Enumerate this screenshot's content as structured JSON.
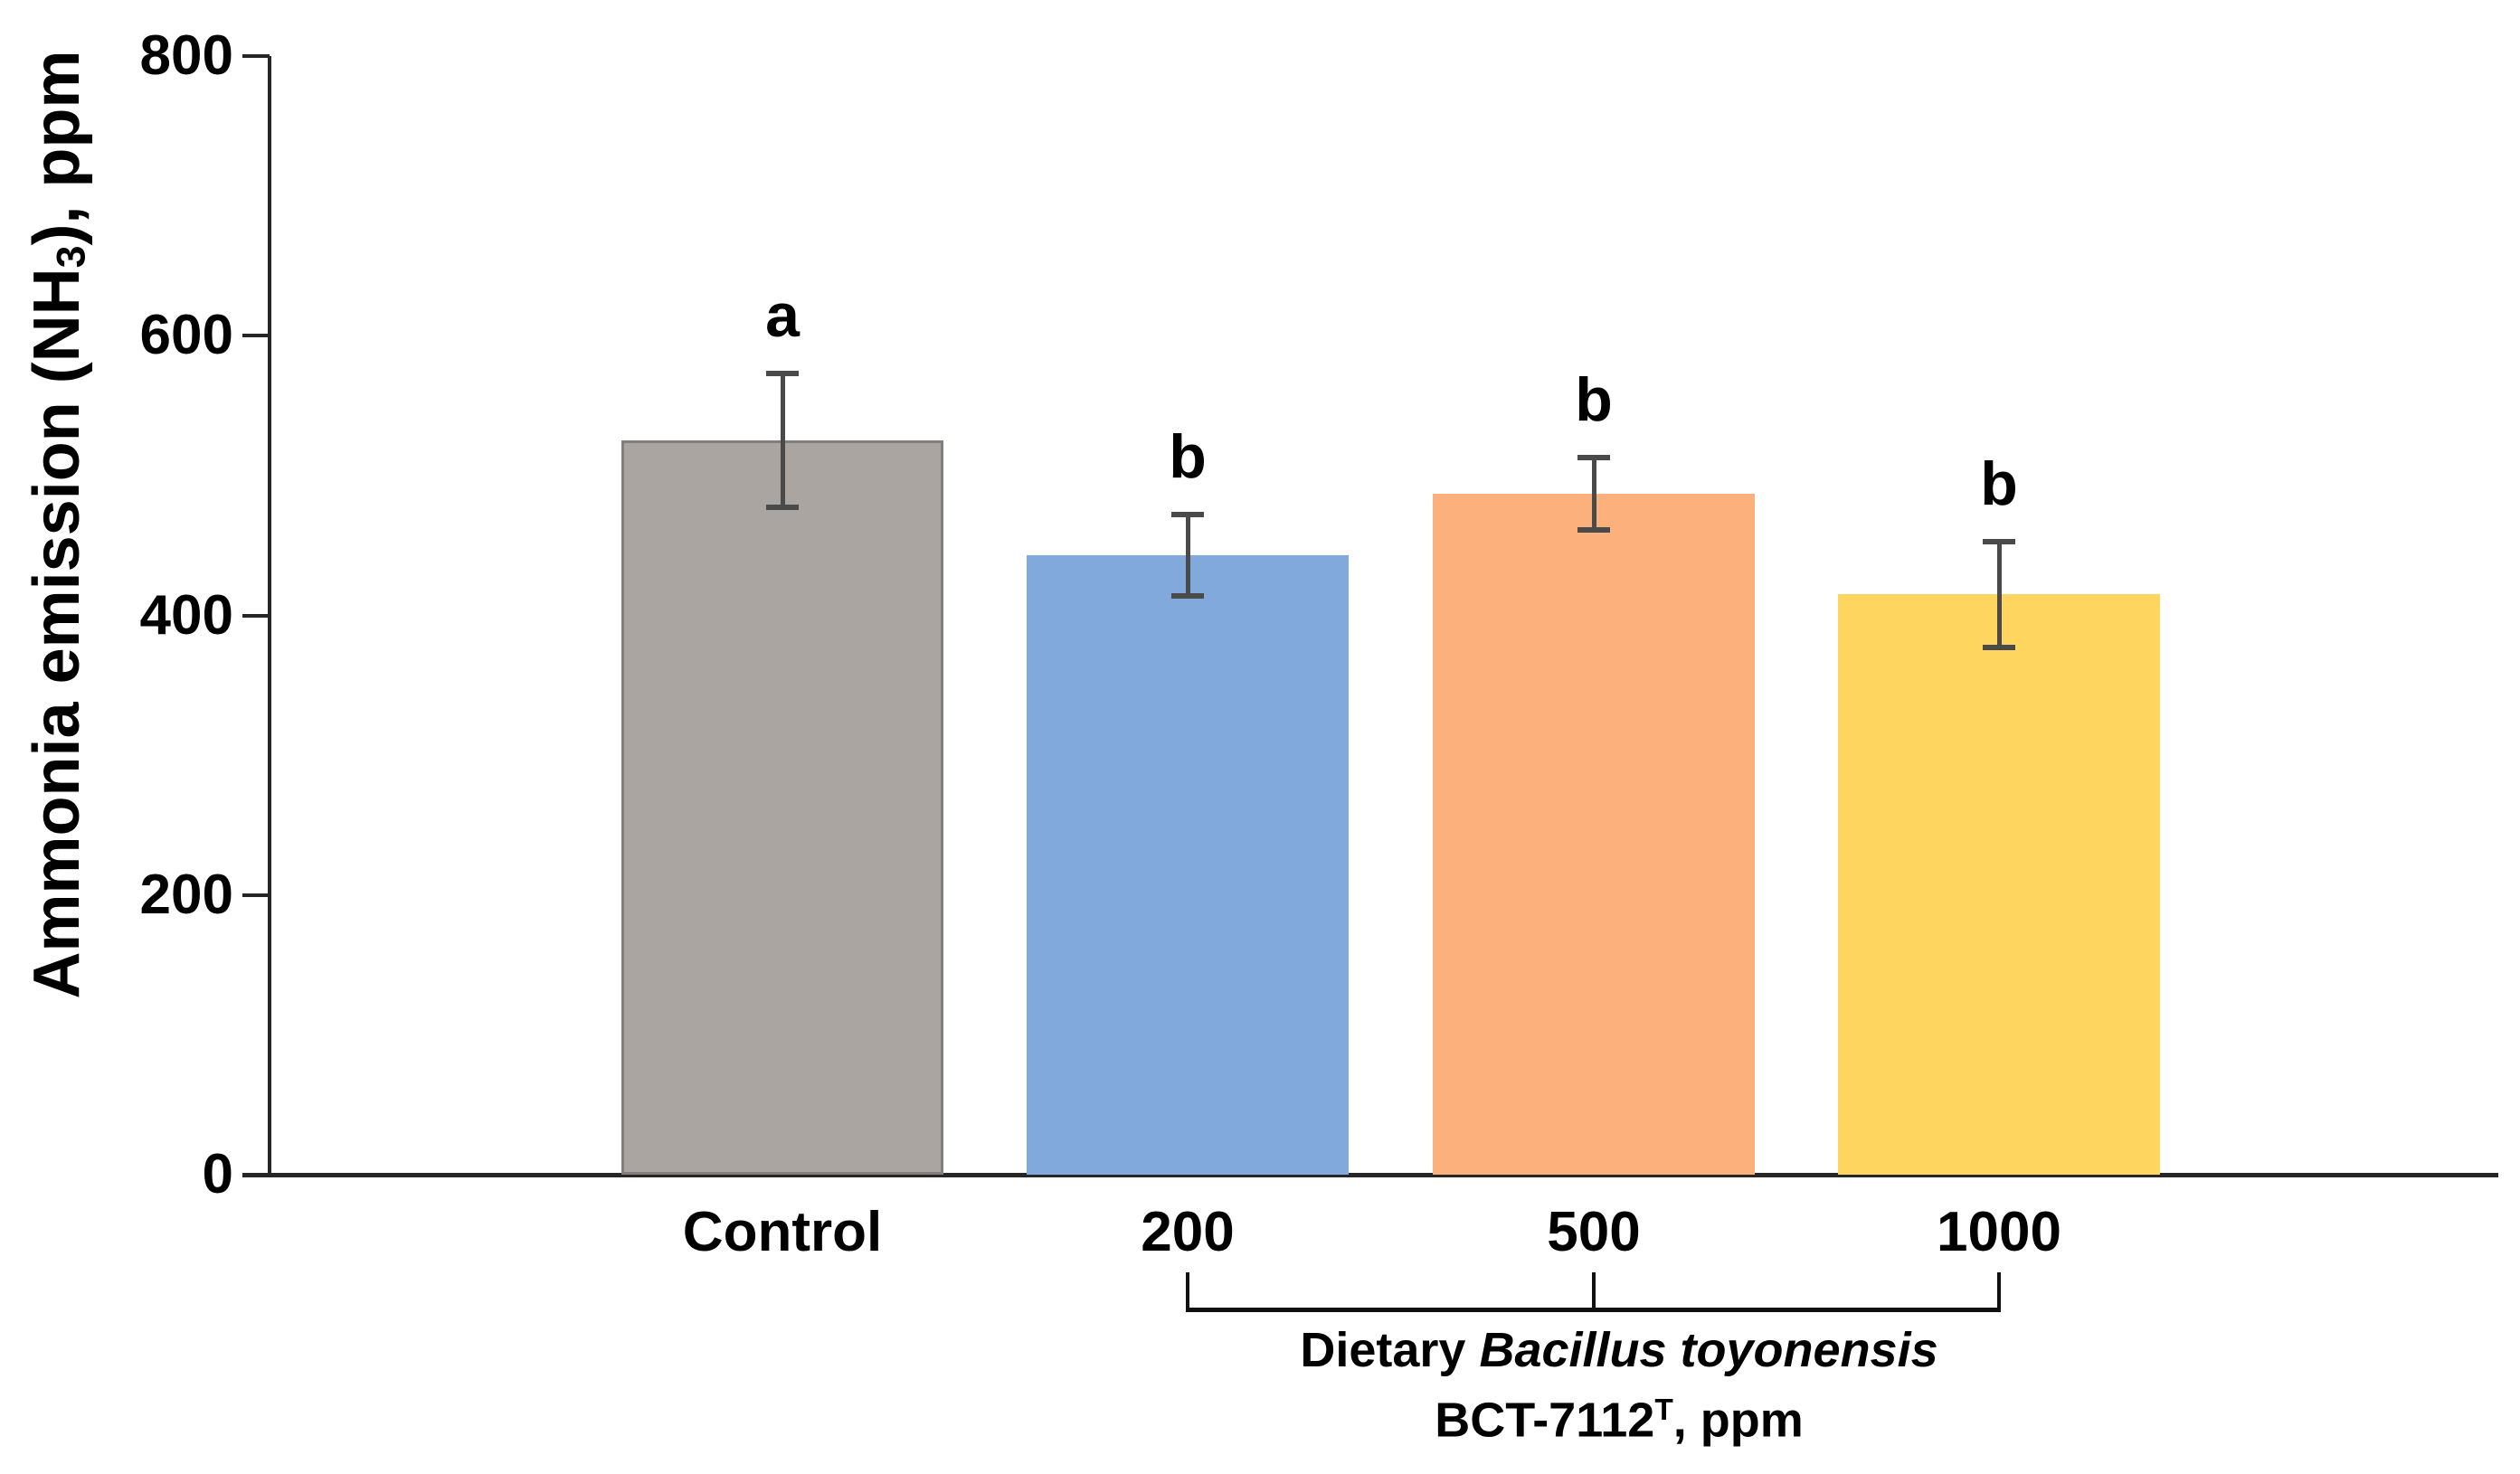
{
  "figure": {
    "background_color": "#FFFFFF",
    "axis_color": "#262626",
    "error_bar_color": "#4A4A4A",
    "text_color": "#000000"
  },
  "chart_data": {
    "type": "bar",
    "title": "",
    "categories": [
      "Control",
      "200",
      "500",
      "1000"
    ],
    "values": [
      525,
      443,
      487,
      415
    ],
    "error_bars": [
      48,
      29,
      26,
      38
    ],
    "sig_letters": [
      "a",
      "b",
      "b",
      "b"
    ],
    "bar_colors": [
      "#ABA5A1",
      "#81A9DC",
      "#FCB17C",
      "#FDD55F"
    ],
    "bar_border_colors": [
      "#827E7A",
      "none",
      "none",
      "none"
    ],
    "ylabel": "Ammonia emission (NH3), ppm",
    "ylabel_parts": [
      {
        "text": "Ammonia emission (NH"
      },
      {
        "text": "3",
        "style": "sub"
      },
      {
        "text": "), ppm"
      }
    ],
    "xlabel": "Dietary Bacillus toyonensis BCT-7112T, ppm",
    "xlabel_line1_parts": [
      {
        "text": "Dietary "
      },
      {
        "text": "Bacillus toyonensis",
        "style": "italic"
      }
    ],
    "xlabel_line2_parts": [
      {
        "text": "BCT-7112"
      },
      {
        "text": "T",
        "style": "sup"
      },
      {
        "text": ", ppm"
      }
    ],
    "bracket_categories": [
      "200",
      "500",
      "1000"
    ],
    "yticks": [
      0,
      200,
      400,
      600,
      800
    ],
    "ylim": [
      0,
      800
    ],
    "grid": false,
    "legend": false
  }
}
